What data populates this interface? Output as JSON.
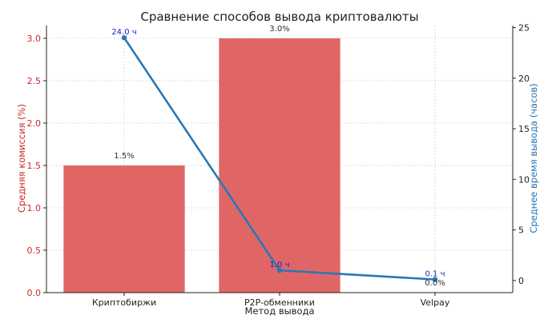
{
  "chart_data": {
    "type": "bar+line",
    "title": "Сравнение способов вывода криптовалюты",
    "xlabel": "Метод вывода",
    "ylabel_left": "Средняя комиссия (%)",
    "ylabel_right": "Среднее время вывода (часов)",
    "categories": [
      "Криптобиржи",
      "P2P-обменники",
      "Velpay"
    ],
    "bar_series": {
      "values": [
        1.5,
        3.0,
        0.0
      ],
      "labels": [
        "1.5%",
        "3.0%",
        "0.0%"
      ],
      "color": "#e06666"
    },
    "line_series": {
      "values": [
        24.0,
        1.0,
        0.1
      ],
      "labels": [
        "24.0 ч",
        "1.0 ч",
        "0.1 ч"
      ],
      "color": "#2a77b4",
      "label_color": "#1f1fd0"
    },
    "ylim_left": [
      0,
      3.15
    ],
    "yticks_left": [
      "0.0",
      "0.5",
      "1.0",
      "1.5",
      "2.0",
      "2.5",
      "3.0"
    ],
    "ylim_right": [
      -1.2,
      25.2
    ],
    "yticks_right": [
      "0",
      "5",
      "10",
      "15",
      "20",
      "25"
    ],
    "left_axis_color": "#cc2b2b",
    "right_axis_color": "#2a77b4",
    "grid": true
  }
}
